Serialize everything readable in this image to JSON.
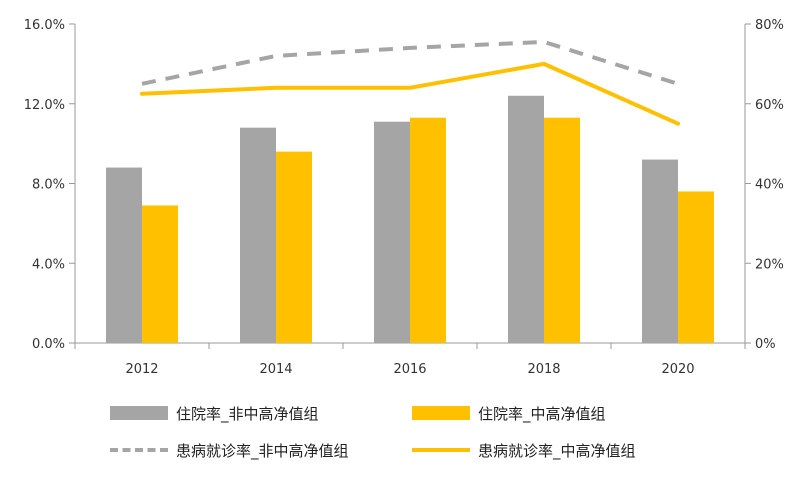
{
  "chart_data": {
    "type": "bar+line",
    "title": "",
    "xlabel": "",
    "ylabel": "",
    "categories": [
      "2012",
      "2014",
      "2016",
      "2018",
      "2020"
    ],
    "y_left": {
      "range": [
        0,
        16
      ],
      "ticks": [
        0,
        4,
        8,
        12,
        16
      ],
      "tick_labels": [
        "0.0%",
        "4.0%",
        "8.0%",
        "12.0%",
        "16.0%"
      ]
    },
    "y_right": {
      "range": [
        0,
        80
      ],
      "ticks": [
        0,
        20,
        40,
        60,
        80
      ],
      "tick_labels": [
        "0%",
        "20%",
        "40%",
        "60%",
        "80%"
      ]
    },
    "grid": false,
    "legend_position": "bottom",
    "series": [
      {
        "name": "住院率_非中高净值组",
        "kind": "bar",
        "axis": "left",
        "color": "#A5A5A5",
        "values": [
          8.8,
          10.8,
          11.1,
          12.4,
          9.2
        ]
      },
      {
        "name": "住院率_中高净值组",
        "kind": "bar",
        "axis": "left",
        "color": "#FFC000",
        "values": [
          6.9,
          9.6,
          11.3,
          11.3,
          7.6
        ]
      },
      {
        "name": "患病就诊率_非中高净值组",
        "kind": "line",
        "style": "dashed",
        "axis": "right",
        "color": "#A5A5A5",
        "values": [
          65,
          72,
          74,
          75.5,
          65
        ]
      },
      {
        "name": "患病就诊率_中高净值组",
        "kind": "line",
        "style": "solid",
        "axis": "right",
        "color": "#FFC000",
        "values": [
          62.5,
          64,
          64,
          70,
          55
        ]
      }
    ]
  }
}
